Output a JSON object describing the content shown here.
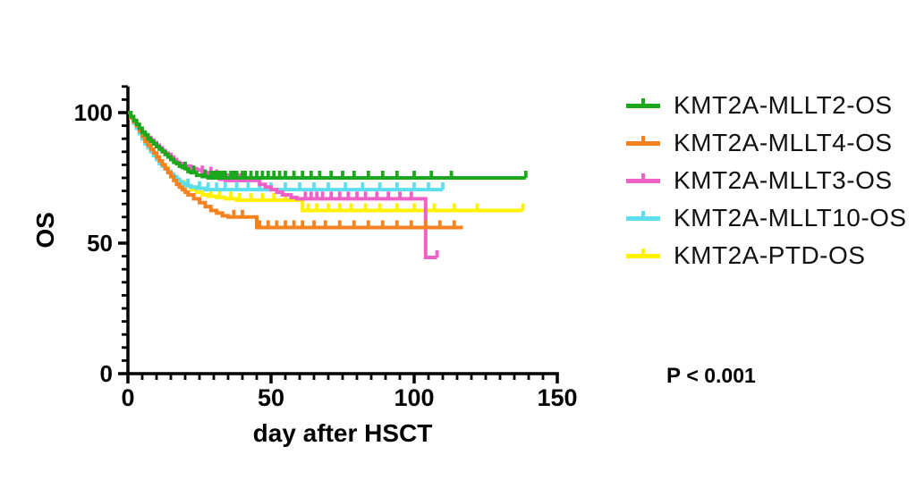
{
  "figure": {
    "background": "#ffffff",
    "pvalue": {
      "prefix": "P",
      "rest": " < 0.001"
    }
  },
  "chart_data": {
    "type": "line",
    "subtype": "kaplan-meier-step-survival",
    "title": "",
    "xlabel": "day after HSCT",
    "ylabel": "OS",
    "xlim": [
      0,
      150
    ],
    "ylim": [
      0,
      110
    ],
    "x_major_ticks": [
      0,
      50,
      100,
      150
    ],
    "x_minor_step": 5,
    "y_major_ticks": [
      0,
      50,
      100
    ],
    "y_minor_step": 5,
    "grid": false,
    "legend_position": "right",
    "annotations": [
      {
        "text": "P < 0.001"
      }
    ],
    "series": [
      {
        "name": "KMT2A-MLLT2-OS",
        "color": "#1CA81C",
        "steps": [
          [
            0,
            100
          ],
          [
            1,
            98.5
          ],
          [
            2,
            97
          ],
          [
            3,
            95.5
          ],
          [
            4,
            94
          ],
          [
            5,
            92.5
          ],
          [
            6,
            91.5
          ],
          [
            7,
            90
          ],
          [
            8,
            89
          ],
          [
            9,
            88
          ],
          [
            10,
            87
          ],
          [
            11,
            86
          ],
          [
            12,
            85
          ],
          [
            13,
            84
          ],
          [
            14,
            83
          ],
          [
            15,
            82
          ],
          [
            16,
            81
          ],
          [
            17,
            80.5
          ],
          [
            18,
            79.5
          ],
          [
            19,
            79
          ],
          [
            20,
            78.5
          ],
          [
            21,
            77.5
          ],
          [
            22,
            77
          ],
          [
            24,
            76
          ],
          [
            26,
            75.5
          ],
          [
            28,
            75
          ],
          [
            139,
            75
          ]
        ],
        "censor_days": [
          20,
          23,
          27,
          29,
          30,
          31,
          32,
          33,
          34,
          36,
          37,
          38,
          40,
          41,
          43,
          45,
          47,
          49,
          51,
          53,
          55,
          58,
          61,
          64,
          67,
          71,
          75,
          79,
          84,
          89,
          94,
          100,
          106,
          113,
          139
        ],
        "final_percent": 75,
        "end_day": 139
      },
      {
        "name": "KMT2A-MLLT4-OS",
        "color": "#F6821F",
        "steps": [
          [
            0,
            100
          ],
          [
            1,
            98
          ],
          [
            2,
            96.5
          ],
          [
            3,
            95
          ],
          [
            4,
            93
          ],
          [
            5,
            91
          ],
          [
            6,
            89
          ],
          [
            7,
            87.5
          ],
          [
            8,
            86
          ],
          [
            9,
            84.5
          ],
          [
            10,
            83
          ],
          [
            11,
            81.5
          ],
          [
            12,
            80
          ],
          [
            13,
            78.5
          ],
          [
            14,
            77
          ],
          [
            15,
            75.5
          ],
          [
            16,
            74
          ],
          [
            17,
            72.5
          ],
          [
            18,
            71.5
          ],
          [
            19,
            70.5
          ],
          [
            20,
            69.5
          ],
          [
            21,
            68.5
          ],
          [
            23,
            67
          ],
          [
            25,
            65.5
          ],
          [
            27,
            64
          ],
          [
            29,
            62.5
          ],
          [
            31,
            61.5
          ],
          [
            33,
            60.5
          ],
          [
            35,
            60
          ],
          [
            44,
            60
          ],
          [
            45,
            56
          ],
          [
            117,
            56
          ]
        ],
        "censor_days": [
          37,
          40,
          46,
          49,
          52,
          55,
          58,
          61,
          65,
          69,
          74,
          79,
          84,
          89,
          94,
          99,
          104,
          109,
          114
        ],
        "final_percent": 56,
        "end_day": 117
      },
      {
        "name": "KMT2A-MLLT3-OS",
        "color": "#EE61C6",
        "steps": [
          [
            0,
            100
          ],
          [
            1,
            98
          ],
          [
            2,
            96.5
          ],
          [
            3,
            95
          ],
          [
            4,
            94
          ],
          [
            5,
            92.5
          ],
          [
            6,
            91.5
          ],
          [
            7,
            90.5
          ],
          [
            8,
            89.5
          ],
          [
            9,
            88.5
          ],
          [
            10,
            87.5
          ],
          [
            11,
            86.5
          ],
          [
            12,
            85.5
          ],
          [
            13,
            84.5
          ],
          [
            14,
            84
          ],
          [
            15,
            83
          ],
          [
            16,
            82
          ],
          [
            17,
            81
          ],
          [
            18,
            80.5
          ],
          [
            19,
            80
          ],
          [
            20,
            79.5
          ],
          [
            22,
            78.5
          ],
          [
            24,
            78
          ],
          [
            26,
            77
          ],
          [
            28,
            76.5
          ],
          [
            30,
            75.5
          ],
          [
            32,
            74.5
          ],
          [
            34,
            74
          ],
          [
            45,
            74
          ],
          [
            46,
            72.5
          ],
          [
            48,
            71.5
          ],
          [
            50,
            70.5
          ],
          [
            52,
            69.5
          ],
          [
            54,
            68.5
          ],
          [
            57,
            67.5
          ],
          [
            59,
            67
          ],
          [
            104,
            44.5
          ],
          [
            108,
            44.5
          ]
        ],
        "censor_days": [
          26,
          29,
          31,
          33,
          35,
          37,
          39,
          41,
          43,
          62,
          64,
          66,
          68,
          71,
          74,
          77,
          80,
          83,
          87,
          91,
          95,
          99,
          108
        ],
        "final_percent": 44.5,
        "end_day": 108
      },
      {
        "name": "KMT2A-MLLT10-OS",
        "color": "#5CDEEE",
        "steps": [
          [
            0,
            100
          ],
          [
            1,
            98
          ],
          [
            2,
            96
          ],
          [
            3,
            94
          ],
          [
            4,
            92
          ],
          [
            5,
            90
          ],
          [
            6,
            88
          ],
          [
            7,
            86.5
          ],
          [
            8,
            85
          ],
          [
            9,
            83.5
          ],
          [
            10,
            82
          ],
          [
            11,
            80.5
          ],
          [
            12,
            79.5
          ],
          [
            13,
            78.5
          ],
          [
            14,
            77.5
          ],
          [
            15,
            76.5
          ],
          [
            16,
            75.5
          ],
          [
            17,
            74.5
          ],
          [
            18,
            73.5
          ],
          [
            19,
            73
          ],
          [
            20,
            72
          ],
          [
            22,
            71.5
          ],
          [
            24,
            71
          ],
          [
            27,
            70.5
          ],
          [
            110,
            70.5
          ]
        ],
        "censor_days": [
          21,
          25,
          28,
          31,
          34,
          38,
          42,
          46,
          50,
          55,
          60,
          65,
          70,
          76,
          82,
          88,
          94,
          100,
          105,
          110
        ],
        "final_percent": 70.5,
        "end_day": 110
      },
      {
        "name": "KMT2A-PTD-OS",
        "color": "#FFF100",
        "steps": [
          [
            0,
            100
          ],
          [
            1,
            98
          ],
          [
            2,
            96.5
          ],
          [
            3,
            94.5
          ],
          [
            4,
            92.5
          ],
          [
            5,
            91
          ],
          [
            6,
            89
          ],
          [
            7,
            87.5
          ],
          [
            8,
            86
          ],
          [
            9,
            84.5
          ],
          [
            10,
            83
          ],
          [
            11,
            81.5
          ],
          [
            12,
            80
          ],
          [
            13,
            79
          ],
          [
            14,
            77.5
          ],
          [
            15,
            76.5
          ],
          [
            16,
            75.5
          ],
          [
            17,
            74.5
          ],
          [
            18,
            73.5
          ],
          [
            20,
            72
          ],
          [
            22,
            70.5
          ],
          [
            24,
            69.5
          ],
          [
            26,
            68.5
          ],
          [
            28,
            68
          ],
          [
            31,
            67.5
          ],
          [
            34,
            67
          ],
          [
            38,
            66.5
          ],
          [
            60,
            66.5
          ],
          [
            61,
            62.5
          ],
          [
            138,
            62.5
          ]
        ],
        "censor_days": [
          29,
          32,
          36,
          39,
          43,
          47,
          51,
          55,
          63,
          66,
          70,
          74,
          78,
          83,
          88,
          94,
          100,
          107,
          114,
          122,
          138
        ],
        "final_percent": 62.5,
        "end_day": 138
      }
    ]
  }
}
